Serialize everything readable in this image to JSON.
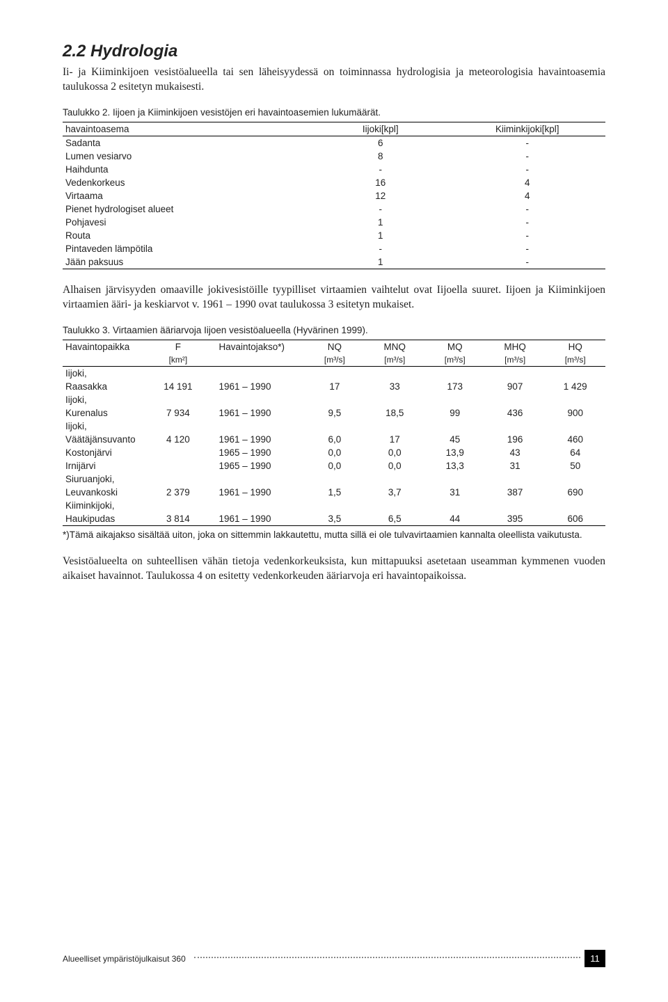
{
  "section": {
    "heading": "2.2 Hydrologia",
    "intro": "Ii- ja Kiiminkijoen vesistöalueella tai sen läheisyydessä on toiminnassa hydrologisia ja meteorologisia havaintoasemia taulukossa 2 esitetyn mukaisesti."
  },
  "table1": {
    "caption": "Taulukko 2. Iijoen ja Kiiminkijoen vesistöjen eri havaintoasemien lukumäärät.",
    "headers": [
      "havaintoasema",
      "Iijoki[kpl]",
      "Kiiminkijoki[kpl]"
    ],
    "rows": [
      [
        "Sadanta",
        "6",
        "-"
      ],
      [
        "Lumen vesiarvo",
        "8",
        "-"
      ],
      [
        "Haihdunta",
        "-",
        "-"
      ],
      [
        "Vedenkorkeus",
        "16",
        "4"
      ],
      [
        "Virtaama",
        "12",
        "4"
      ],
      [
        "Pienet hydrologiset alueet",
        "-",
        "-"
      ],
      [
        "Pohjavesi",
        "1",
        "-"
      ],
      [
        "Routa",
        "1",
        "-"
      ],
      [
        "Pintaveden lämpötila",
        "-",
        "-"
      ],
      [
        "Jään paksuus",
        "1",
        "-"
      ]
    ]
  },
  "para2": "Alhaisen järvisyyden omaaville jokivesistöille tyypilliset virtaamien vaihtelut ovat Iijoella suuret. Iijoen ja Kiiminkijoen virtaamien ääri- ja keskiarvot v. 1961 – 1990 ovat taulukossa 3 esitetyn mukaiset.",
  "table2": {
    "caption": "Taulukko 3. Virtaamien ääriarvoja Iijoen vesistöalueella (Hyvärinen 1999).",
    "headers1": [
      "Havaintopaikka",
      "F",
      "Havaintojakso*)",
      "NQ",
      "MNQ",
      "MQ",
      "MHQ",
      "HQ"
    ],
    "headers2": [
      "",
      "[km²]",
      "",
      "[m³/s]",
      "[m³/s]",
      "[m³/s]",
      "[m³/s]",
      "[m³/s]"
    ],
    "group_rows": [
      {
        "pre": "Iijoki,",
        "row": [
          "Raasakka",
          "14 191",
          "1961 – 1990",
          "17",
          "33",
          "173",
          "907",
          "1 429"
        ]
      },
      {
        "pre": "Iijoki,",
        "row": [
          "Kurenalus",
          "7 934",
          "1961 – 1990",
          "9,5",
          "18,5",
          "99",
          "436",
          "900"
        ]
      },
      {
        "pre": "Iijoki,",
        "row": [
          "Väätäjänsuvanto",
          "4 120",
          "1961 – 1990",
          "6,0",
          "17",
          "45",
          "196",
          "460"
        ]
      },
      {
        "pre": null,
        "row": [
          "Kostonjärvi",
          "",
          "1965 – 1990",
          "0,0",
          "0,0",
          "13,9",
          "43",
          "64"
        ]
      },
      {
        "pre": null,
        "row": [
          "Irnijärvi",
          "",
          "1965 – 1990",
          "0,0",
          "0,0",
          "13,3",
          "31",
          "50"
        ]
      },
      {
        "pre": "Siuruanjoki,",
        "row": [
          "Leuvankoski",
          "2 379",
          "1961 – 1990",
          "1,5",
          "3,7",
          "31",
          "387",
          "690"
        ]
      },
      {
        "pre": "Kiiminkijoki,",
        "row": [
          "Haukipudas",
          "3 814",
          "1961 – 1990",
          "3,5",
          "6,5",
          "44",
          "395",
          "606"
        ]
      }
    ],
    "footnote": "*)Tämä aikajakso sisältää uiton, joka on sittemmin lakkautettu, mutta sillä ei ole tulvavirtaamien kannalta oleellista vaikutusta."
  },
  "para3": "Vesistöalueelta on suhteellisen vähän tietoja vedenkorkeuksista, kun mittapuuksi asetetaan useamman kymmenen vuoden aikaiset havainnot. Taulukossa 4 on esitetty vedenkorkeuden ääriarvoja eri havaintopaikoissa.",
  "footer": {
    "label": "Alueelliset ympäristöjulkaisut 360",
    "page": "11"
  }
}
